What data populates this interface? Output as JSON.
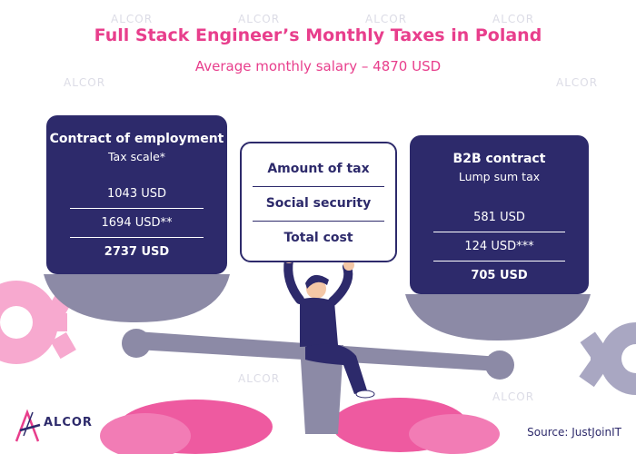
{
  "header": {
    "title": "Full Stack Engineer’s Monthly Taxes in Poland",
    "subtitle": "Average monthly salary – 4870 USD"
  },
  "left_card": {
    "title": "Contract of employment",
    "subtitle": "Tax scale*",
    "rows": [
      "1043 USD",
      "1694 USD**",
      "2737 USD"
    ]
  },
  "legend": {
    "items": [
      "Amount of tax",
      "Social security",
      "Total cost"
    ]
  },
  "right_card": {
    "title": "B2B contract",
    "subtitle": "Lump sum tax",
    "rows": [
      "581 USD",
      "124 USD***",
      "705 USD"
    ]
  },
  "footer": {
    "logo_text": "ALCOR",
    "source": "Source: JustJoinIT"
  },
  "watermark_text": "ALCOR",
  "colors": {
    "navy": "#2d2a6b",
    "pink": "#e83e8c",
    "scale_gray": "#8c8aa6",
    "light_pink": "#f7a9cf"
  }
}
